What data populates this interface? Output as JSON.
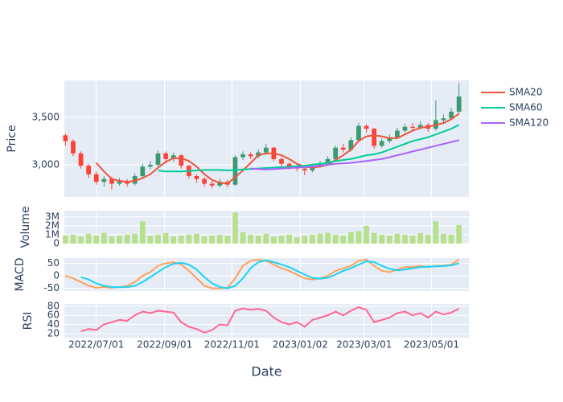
{
  "chart_data": [
    {
      "type": "candlestick",
      "xlabel": "Date",
      "ylabel": "Price",
      "x": [
        "2022-06-03",
        "2022-06-10",
        "2022-06-17",
        "2022-06-24",
        "2022-07-01",
        "2022-07-08",
        "2022-07-15",
        "2022-07-22",
        "2022-07-29",
        "2022-08-05",
        "2022-08-12",
        "2022-08-19",
        "2022-08-26",
        "2022-09-02",
        "2022-09-09",
        "2022-09-16",
        "2022-09-23",
        "2022-09-30",
        "2022-10-07",
        "2022-10-14",
        "2022-10-21",
        "2022-10-28",
        "2022-11-04",
        "2022-11-11",
        "2022-11-18",
        "2022-11-25",
        "2022-12-02",
        "2022-12-09",
        "2022-12-16",
        "2022-12-23",
        "2022-12-30",
        "2023-01-06",
        "2023-01-13",
        "2023-01-20",
        "2023-01-27",
        "2023-02-03",
        "2023-02-10",
        "2023-02-17",
        "2023-02-24",
        "2023-03-03",
        "2023-03-10",
        "2023-03-17",
        "2023-03-24",
        "2023-03-31",
        "2023-04-07",
        "2023-04-14",
        "2023-04-21",
        "2023-04-28",
        "2023-05-05",
        "2023-05-12",
        "2023-05-19",
        "2023-05-26"
      ],
      "xlim": [
        "2022-06-02",
        "2023-06-04"
      ],
      "xticks": [
        {
          "value": "2022-07-01",
          "label": "2022/07/01"
        },
        {
          "value": "2022-09-01",
          "label": "2022/09/01"
        },
        {
          "value": "2022-11-01",
          "label": "2022/11/01"
        },
        {
          "value": "2023-01-02",
          "label": "2023/01/02"
        },
        {
          "value": "2023-03-01",
          "label": "2023/03/01"
        },
        {
          "value": "2023-05-01",
          "label": "2023/05/01"
        }
      ],
      "ylim": [
        2660,
        3890
      ],
      "yticks": [
        {
          "value": 3000,
          "label": "3,000"
        },
        {
          "value": 3500,
          "label": "3,500"
        }
      ],
      "grid": true,
      "legend": "right",
      "increasing_color": "#3D9970",
      "decreasing_color": "#FF4136",
      "open": [
        3310,
        3250,
        3120,
        2990,
        2900,
        2820,
        2850,
        2800,
        2830,
        2800,
        2880,
        2980,
        3000,
        3120,
        3060,
        3100,
        2990,
        2880,
        2850,
        2800,
        2780,
        2820,
        2790,
        3080,
        3110,
        3090,
        3130,
        3180,
        3060,
        3010,
        2980,
        2960,
        2940,
        2990,
        3010,
        3060,
        3180,
        3160,
        3260,
        3410,
        3380,
        3200,
        3250,
        3290,
        3360,
        3400,
        3390,
        3420,
        3380,
        3470,
        3490,
        3560
      ],
      "high": [
        3330,
        3270,
        3140,
        3010,
        2930,
        2880,
        2870,
        2860,
        2850,
        2910,
        3010,
        3040,
        3150,
        3140,
        3130,
        3110,
        3000,
        2900,
        2870,
        2830,
        2850,
        2840,
        3100,
        3140,
        3130,
        3160,
        3220,
        3190,
        3080,
        3030,
        3000,
        2980,
        3010,
        3040,
        3090,
        3200,
        3220,
        3290,
        3440,
        3430,
        3390,
        3280,
        3320,
        3390,
        3430,
        3440,
        3460,
        3440,
        3680,
        3530,
        3600,
        3860
      ],
      "low": [
        3200,
        3090,
        2960,
        2860,
        2790,
        2770,
        2740,
        2780,
        2770,
        2780,
        2860,
        2950,
        2980,
        3020,
        3030,
        2960,
        2850,
        2810,
        2770,
        2750,
        2760,
        2760,
        2780,
        3050,
        3060,
        3070,
        3110,
        3040,
        2980,
        2950,
        2930,
        2890,
        2920,
        2970,
        2990,
        3040,
        3130,
        3140,
        3240,
        3340,
        3170,
        3180,
        3230,
        3270,
        3340,
        3360,
        3370,
        3350,
        3360,
        3440,
        3470,
        3540
      ],
      "close": [
        3250,
        3120,
        2990,
        2900,
        2820,
        2850,
        2800,
        2830,
        2800,
        2880,
        2980,
        3000,
        3120,
        3060,
        3100,
        2990,
        2880,
        2850,
        2800,
        2780,
        2820,
        2790,
        3080,
        3110,
        3090,
        3130,
        3180,
        3060,
        3010,
        2980,
        2960,
        2940,
        2990,
        3010,
        3060,
        3180,
        3160,
        3260,
        3410,
        3380,
        3200,
        3250,
        3290,
        3360,
        3400,
        3390,
        3420,
        3380,
        3470,
        3490,
        3560,
        3720
      ],
      "series": [
        {
          "name": "SMA20",
          "color": "#EF553B",
          "values": [
            null,
            null,
            null,
            null,
            3020,
            2930,
            2850,
            2830,
            2820,
            2830,
            2860,
            2900,
            2970,
            3030,
            3070,
            3070,
            3040,
            2980,
            2900,
            2840,
            2810,
            2800,
            2870,
            2940,
            3020,
            3100,
            3120,
            3120,
            3100,
            3060,
            3010,
            2980,
            2970,
            2980,
            3000,
            3050,
            3100,
            3160,
            3250,
            3300,
            3310,
            3300,
            3280,
            3280,
            3320,
            3360,
            3390,
            3400,
            3420,
            3440,
            3480,
            3540
          ]
        },
        {
          "name": "SMA60",
          "color": "#00CC96",
          "values": [
            null,
            null,
            null,
            null,
            null,
            null,
            null,
            null,
            null,
            null,
            null,
            null,
            2940,
            2930,
            2930,
            2930,
            2935,
            2940,
            2945,
            2945,
            2945,
            2940,
            2945,
            2950,
            2955,
            2960,
            2965,
            2970,
            2975,
            2980,
            2985,
            2990,
            3000,
            3010,
            3020,
            3040,
            3050,
            3060,
            3080,
            3100,
            3110,
            3130,
            3160,
            3190,
            3220,
            3250,
            3270,
            3290,
            3320,
            3350,
            3380,
            3420
          ]
        },
        {
          "name": "SMA120",
          "color": "#AB63FA",
          "values": [
            null,
            null,
            null,
            null,
            null,
            null,
            null,
            null,
            null,
            null,
            null,
            null,
            null,
            null,
            null,
            null,
            null,
            null,
            null,
            null,
            null,
            null,
            null,
            null,
            2960,
            2955,
            2950,
            2955,
            2960,
            2965,
            2970,
            2975,
            2980,
            2990,
            3000,
            3010,
            3015,
            3020,
            3030,
            3040,
            3050,
            3060,
            3080,
            3100,
            3120,
            3140,
            3160,
            3180,
            3200,
            3220,
            3240,
            3260
          ]
        }
      ]
    },
    {
      "type": "bar",
      "ylabel": "Volume",
      "color": "#b6e08a",
      "grid": true,
      "ylim": [
        0,
        3700000
      ],
      "yticks": [
        0,
        {
          "value": 1000000,
          "label": "1M"
        },
        {
          "value": 2000000,
          "label": "2M"
        },
        {
          "value": 3000000,
          "label": "3M"
        }
      ],
      "values": [
        900000,
        1000000,
        800000,
        1100000,
        900000,
        1200000,
        800000,
        900000,
        1000000,
        1100000,
        2500000,
        900000,
        1000000,
        1200000,
        800000,
        900000,
        1000000,
        1100000,
        800000,
        900000,
        1000000,
        900000,
        3500000,
        1300000,
        1000000,
        900000,
        1100000,
        800000,
        900000,
        1000000,
        700000,
        900000,
        1000000,
        1100000,
        1200000,
        1000000,
        900000,
        1300000,
        1400000,
        2000000,
        1200000,
        1000000,
        900000,
        1100000,
        1000000,
        900000,
        1200000,
        1000000,
        2500000,
        1100000,
        1000000,
        2100000
      ]
    },
    {
      "type": "line",
      "ylabel": "MACD",
      "grid": true,
      "ylim": [
        -61,
        71
      ],
      "yticks": [
        -50,
        0,
        50
      ],
      "series": [
        {
          "color": "#FFA15A",
          "values": [
            0,
            -10,
            -25,
            -40,
            -48,
            -45,
            -48,
            -45,
            -40,
            -25,
            0,
            15,
            40,
            50,
            55,
            45,
            20,
            -10,
            -40,
            -50,
            -50,
            -48,
            -10,
            40,
            60,
            65,
            60,
            45,
            30,
            20,
            5,
            -10,
            -15,
            -10,
            0,
            20,
            30,
            40,
            60,
            65,
            40,
            20,
            15,
            25,
            35,
            35,
            40,
            35,
            40,
            40,
            45,
            65
          ]
        },
        {
          "color": "#19D3F3",
          "values": [
            null,
            null,
            -5,
            -15,
            -30,
            -40,
            -45,
            -46,
            -45,
            -40,
            -25,
            -5,
            15,
            35,
            48,
            52,
            45,
            25,
            -5,
            -30,
            -45,
            -50,
            -40,
            -10,
            30,
            55,
            62,
            55,
            45,
            35,
            20,
            5,
            -8,
            -12,
            -8,
            5,
            20,
            30,
            45,
            58,
            55,
            40,
            28,
            22,
            25,
            30,
            35,
            37,
            38,
            39,
            42,
            50
          ]
        }
      ]
    },
    {
      "type": "line",
      "ylabel": "RSI",
      "grid": true,
      "ylim": [
        11,
        85
      ],
      "yticks": [
        20,
        40,
        60,
        80
      ],
      "series": [
        {
          "color": "#FF6692",
          "values": [
            null,
            null,
            25,
            30,
            28,
            40,
            45,
            50,
            48,
            60,
            68,
            65,
            70,
            68,
            66,
            45,
            35,
            30,
            22,
            28,
            40,
            38,
            70,
            75,
            72,
            74,
            70,
            55,
            45,
            40,
            45,
            35,
            50,
            55,
            60,
            68,
            60,
            70,
            78,
            72,
            45,
            50,
            55,
            65,
            68,
            60,
            65,
            55,
            68,
            62,
            66,
            75
          ]
        }
      ]
    }
  ]
}
